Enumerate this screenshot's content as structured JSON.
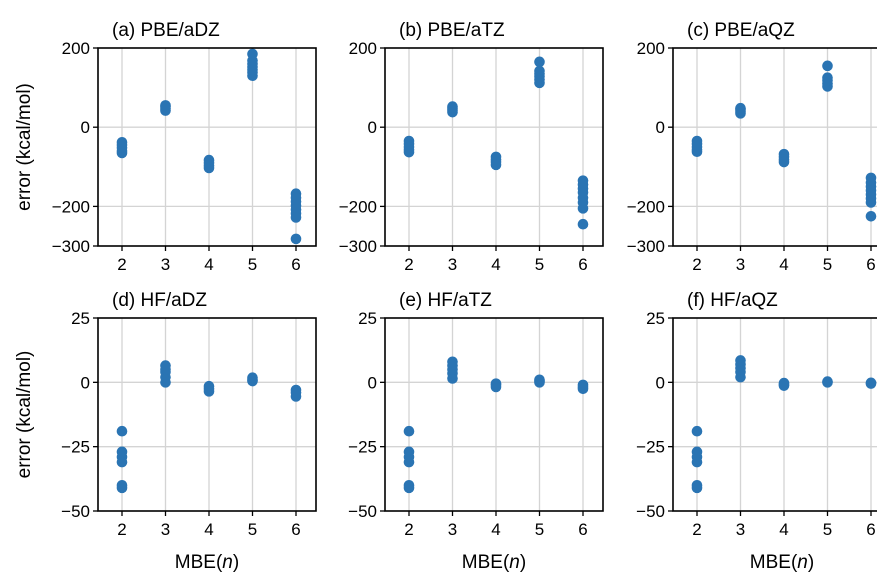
{
  "colors": {
    "marker": "#2a74b3",
    "grid": "#d4d4d4",
    "axis": "#000000"
  },
  "chart_data": [
    {
      "type": "scatter",
      "title": "(a) PBE/aDZ",
      "xlabel": "",
      "ylabel": "error (kcal/mol)",
      "xticks": [
        "2",
        "3",
        "4",
        "5",
        "6"
      ],
      "yticks": [
        "-300",
        "-200",
        "0",
        "200"
      ],
      "ylim": [
        -300,
        200
      ],
      "grid": true,
      "series": [
        {
          "points": [
            [
              2,
              -38
            ],
            [
              2,
              -45
            ],
            [
              2,
              -52
            ],
            [
              2,
              -60
            ],
            [
              2,
              -65
            ],
            [
              3,
              42
            ],
            [
              3,
              47
            ],
            [
              3,
              52
            ],
            [
              3,
              55
            ],
            [
              4,
              -83
            ],
            [
              4,
              -90
            ],
            [
              4,
              -97
            ],
            [
              4,
              -103
            ],
            [
              5,
              130
            ],
            [
              5,
              138
            ],
            [
              5,
              145
            ],
            [
              5,
              152
            ],
            [
              5,
              160
            ],
            [
              5,
              168
            ],
            [
              5,
              185
            ],
            [
              6,
              -168
            ],
            [
              6,
              -178
            ],
            [
              6,
              -188
            ],
            [
              6,
              -198
            ],
            [
              6,
              -208
            ],
            [
              6,
              -218
            ],
            [
              6,
              -228
            ],
            [
              6,
              -282
            ]
          ]
        }
      ]
    },
    {
      "type": "scatter",
      "title": "(b) PBE/aTZ",
      "xlabel": "",
      "ylabel": "",
      "xticks": [
        "2",
        "3",
        "4",
        "5",
        "6"
      ],
      "yticks": [
        "-300",
        "-200",
        "0",
        "200"
      ],
      "ylim": [
        -300,
        200
      ],
      "grid": true,
      "series": [
        {
          "points": [
            [
              2,
              -35
            ],
            [
              2,
              -42
            ],
            [
              2,
              -50
            ],
            [
              2,
              -57
            ],
            [
              2,
              -63
            ],
            [
              3,
              38
            ],
            [
              3,
              43
            ],
            [
              3,
              48
            ],
            [
              3,
              52
            ],
            [
              4,
              -75
            ],
            [
              4,
              -82
            ],
            [
              4,
              -88
            ],
            [
              4,
              -95
            ],
            [
              5,
              112
            ],
            [
              5,
              120
            ],
            [
              5,
              128
            ],
            [
              5,
              135
            ],
            [
              5,
              142
            ],
            [
              5,
              165
            ],
            [
              6,
              -135
            ],
            [
              6,
              -145
            ],
            [
              6,
              -155
            ],
            [
              6,
              -165
            ],
            [
              6,
              -178
            ],
            [
              6,
              -190
            ],
            [
              6,
              -205
            ],
            [
              6,
              -245
            ]
          ]
        }
      ]
    },
    {
      "type": "scatter",
      "title": "(c) PBE/aQZ",
      "xlabel": "",
      "ylabel": "",
      "xticks": [
        "2",
        "3",
        "4",
        "5",
        "6"
      ],
      "yticks": [
        "-300",
        "-200",
        "0",
        "200"
      ],
      "ylim": [
        -300,
        200
      ],
      "grid": true,
      "series": [
        {
          "points": [
            [
              2,
              -35
            ],
            [
              2,
              -42
            ],
            [
              2,
              -50
            ],
            [
              2,
              -57
            ],
            [
              2,
              -62
            ],
            [
              3,
              35
            ],
            [
              3,
              40
            ],
            [
              3,
              45
            ],
            [
              3,
              48
            ],
            [
              4,
              -68
            ],
            [
              4,
              -75
            ],
            [
              4,
              -82
            ],
            [
              4,
              -88
            ],
            [
              5,
              103
            ],
            [
              5,
              110
            ],
            [
              5,
              118
            ],
            [
              5,
              125
            ],
            [
              5,
              155
            ],
            [
              6,
              -128
            ],
            [
              6,
              -140
            ],
            [
              6,
              -150
            ],
            [
              6,
              -160
            ],
            [
              6,
              -170
            ],
            [
              6,
              -180
            ],
            [
              6,
              -190
            ],
            [
              6,
              -225
            ]
          ]
        }
      ]
    },
    {
      "type": "scatter",
      "title": "(d) HF/aDZ",
      "xlabel": "MBE(n)",
      "ylabel": "error (kcal/mol)",
      "xticks": [
        "2",
        "3",
        "4",
        "5",
        "6"
      ],
      "yticks": [
        "-50",
        "-25",
        "0",
        "25"
      ],
      "ylim": [
        -50,
        25
      ],
      "grid": true,
      "series": [
        {
          "points": [
            [
              2,
              -19
            ],
            [
              2,
              -27
            ],
            [
              2,
              -29
            ],
            [
              2,
              -31
            ],
            [
              2,
              -40
            ],
            [
              2,
              -41
            ],
            [
              3,
              0
            ],
            [
              3,
              2
            ],
            [
              3,
              4
            ],
            [
              3,
              5
            ],
            [
              3,
              6.5
            ],
            [
              4,
              -1.5
            ],
            [
              4,
              -2.5
            ],
            [
              4,
              -3.5
            ],
            [
              5,
              0.5
            ],
            [
              5,
              1
            ],
            [
              5,
              1.8
            ],
            [
              6,
              -3
            ],
            [
              6,
              -4
            ],
            [
              6,
              -5.5
            ]
          ]
        }
      ]
    },
    {
      "type": "scatter",
      "title": "(e) HF/aTZ",
      "xlabel": "MBE(n)",
      "ylabel": "",
      "xticks": [
        "2",
        "3",
        "4",
        "5",
        "6"
      ],
      "yticks": [
        "-50",
        "-25",
        "0",
        "25"
      ],
      "ylim": [
        -50,
        25
      ],
      "grid": true,
      "series": [
        {
          "points": [
            [
              2,
              -19
            ],
            [
              2,
              -27
            ],
            [
              2,
              -29
            ],
            [
              2,
              -31
            ],
            [
              2,
              -40
            ],
            [
              2,
              -41
            ],
            [
              3,
              1.5
            ],
            [
              3,
              3.5
            ],
            [
              3,
              5
            ],
            [
              3,
              6.5
            ],
            [
              3,
              8
            ],
            [
              4,
              -0.5
            ],
            [
              4,
              -1
            ],
            [
              4,
              -1.8
            ],
            [
              5,
              0
            ],
            [
              5,
              0.5
            ],
            [
              5,
              1
            ],
            [
              6,
              -1
            ],
            [
              6,
              -1.8
            ],
            [
              6,
              -2.5
            ]
          ]
        }
      ]
    },
    {
      "type": "scatter",
      "title": "(f) HF/aQZ",
      "xlabel": "MBE(n)",
      "ylabel": "",
      "xticks": [
        "2",
        "3",
        "4",
        "5",
        "6"
      ],
      "yticks": [
        "-50",
        "-25",
        "0",
        "25"
      ],
      "ylim": [
        -50,
        25
      ],
      "grid": true,
      "series": [
        {
          "points": [
            [
              2,
              -19
            ],
            [
              2,
              -27
            ],
            [
              2,
              -29
            ],
            [
              2,
              -31
            ],
            [
              2,
              -40
            ],
            [
              2,
              -41
            ],
            [
              3,
              2
            ],
            [
              3,
              4
            ],
            [
              3,
              5.5
            ],
            [
              3,
              7
            ],
            [
              3,
              8.5
            ],
            [
              4,
              -0.3
            ],
            [
              4,
              -0.8
            ],
            [
              4,
              -1.3
            ],
            [
              5,
              0
            ],
            [
              5,
              0.3
            ],
            [
              6,
              -0.2
            ],
            [
              6,
              -0.5
            ]
          ]
        }
      ]
    }
  ]
}
